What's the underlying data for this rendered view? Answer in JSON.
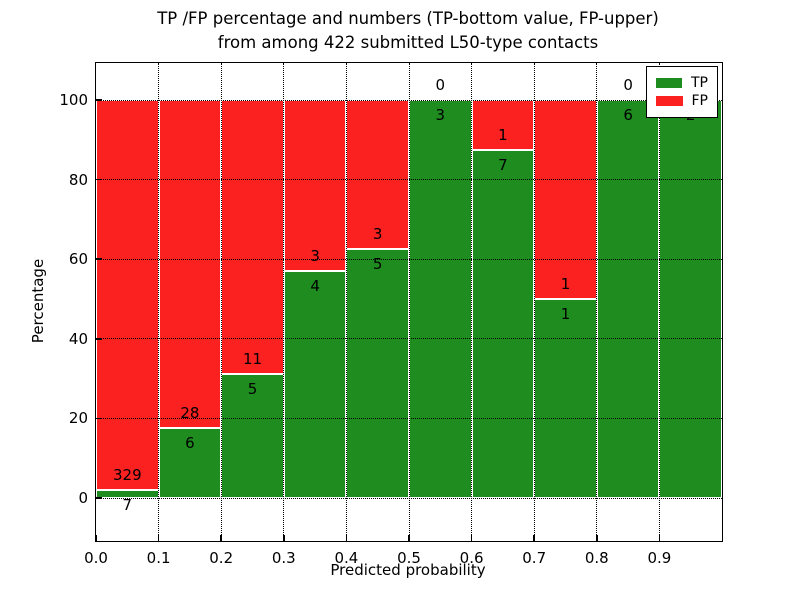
{
  "chart_data": {
    "type": "bar",
    "stacked": true,
    "normalized_to_percent": true,
    "title_lines": [
      "TP /FP percentage and numbers (TP-bottom value, FP-upper)",
      "from among 422 submitted L50-type contacts"
    ],
    "xlabel": "Predicted probability",
    "ylabel": "Percentage",
    "total_contacts": 422,
    "categories": [
      "0.0-0.1",
      "0.1-0.2",
      "0.2-0.3",
      "0.3-0.4",
      "0.4-0.5",
      "0.5-0.6",
      "0.6-0.7",
      "0.7-0.8",
      "0.8-0.9",
      "0.9-1.0"
    ],
    "series": [
      {
        "name": "TP",
        "color": "#1e8c1e",
        "values": [
          7,
          6,
          5,
          4,
          5,
          3,
          7,
          1,
          6,
          2
        ]
      },
      {
        "name": "FP",
        "color": "#fb2121",
        "values": [
          329,
          28,
          11,
          3,
          3,
          0,
          1,
          1,
          0,
          0
        ]
      }
    ],
    "tp_percent": [
      2.08,
      17.65,
      31.25,
      57.14,
      62.5,
      100,
      87.5,
      50,
      100,
      100
    ],
    "x_ticks": [
      "0.0",
      "0.1",
      "0.2",
      "0.3",
      "0.4",
      "0.5",
      "0.6",
      "0.7",
      "0.8",
      "0.9"
    ],
    "y_ticks": [
      "0",
      "20",
      "40",
      "60",
      "80",
      "100"
    ],
    "xlim": [
      0.0,
      1.0
    ],
    "ylim": [
      -10.8,
      109.3
    ],
    "grid": "dotted",
    "legend_position": "upper right",
    "legend": [
      {
        "label": "TP",
        "color": "#1e8c1e"
      },
      {
        "label": "FP",
        "color": "#fb2121"
      }
    ]
  }
}
